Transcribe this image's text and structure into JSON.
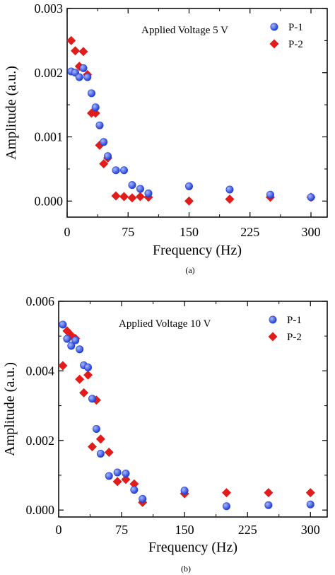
{
  "colors": {
    "p1": "#1f3ed6",
    "p1_highlight": "#a9b8ff",
    "p2": "#e21b1b",
    "axis": "#000000"
  },
  "chart_data": [
    {
      "type": "scatter",
      "caption": "(a)",
      "annotation": "Applied Voltage 5 V",
      "xlabel": "Frequency (Hz)",
      "ylabel": "Amplitude (a.u.)",
      "xlim": [
        0,
        320
      ],
      "ylim": [
        -0.00025,
        0.003
      ],
      "xticks": [
        0,
        75,
        150,
        225,
        300
      ],
      "xtick_labels": [
        "0",
        "75",
        "150",
        "225",
        "300"
      ],
      "yticks": [
        0.0,
        0.001,
        0.002,
        0.003
      ],
      "ytick_labels": [
        "0.000",
        "0.001",
        "0.002",
        "0.003"
      ],
      "legend_position": "top-right",
      "series": [
        {
          "name": "P-1",
          "marker": "circle",
          "x": [
            5,
            10,
            15,
            20,
            25,
            30,
            35,
            40,
            45,
            50,
            60,
            70,
            80,
            90,
            100,
            150,
            200,
            250,
            300
          ],
          "y": [
            0.00202,
            0.002,
            0.00193,
            0.00207,
            0.00193,
            0.00168,
            0.00146,
            0.00118,
            0.00092,
            0.0007,
            0.00048,
            0.00048,
            0.00025,
            0.00019,
            0.00012,
            0.00023,
            0.00018,
            0.0001,
            6e-05
          ]
        },
        {
          "name": "P-2",
          "marker": "diamond",
          "x": [
            5,
            10,
            15,
            20,
            25,
            30,
            35,
            40,
            45,
            50,
            60,
            70,
            80,
            90,
            100,
            150,
            200,
            250,
            300
          ],
          "y": [
            0.0025,
            0.00234,
            0.0021,
            0.00233,
            0.00197,
            0.00137,
            0.00137,
            0.00087,
            0.00058,
            0.00067,
            8e-05,
            7e-05,
            5e-05,
            7e-05,
            6e-05,
            0.0,
            3e-05,
            6e-05,
            6e-05
          ]
        }
      ]
    },
    {
      "type": "scatter",
      "caption": "(b)",
      "annotation": "Applied Voltage 10 V",
      "xlabel": "Frequency (Hz)",
      "ylabel": "Amplitude (a.u.)",
      "xlim": [
        0,
        320
      ],
      "ylim": [
        -0.0002,
        0.006
      ],
      "xticks": [
        0,
        75,
        150,
        225,
        300
      ],
      "xtick_labels": [
        "0",
        "75",
        "150",
        "225",
        "300"
      ],
      "yticks": [
        0.0,
        0.002,
        0.004,
        0.006
      ],
      "ytick_labels": [
        "0.000",
        "0.002",
        "0.004",
        "0.006"
      ],
      "legend_position": "top-right",
      "series": [
        {
          "name": "P-1",
          "marker": "circle",
          "x": [
            5,
            10,
            15,
            20,
            25,
            30,
            35,
            40,
            45,
            50,
            60,
            70,
            80,
            90,
            100,
            150,
            200,
            250,
            300
          ],
          "y": [
            0.00533,
            0.00492,
            0.00472,
            0.00488,
            0.00462,
            0.00416,
            0.0041,
            0.0032,
            0.00233,
            0.00162,
            0.00098,
            0.00108,
            0.00105,
            0.00058,
            0.00032,
            0.00056,
            0.00011,
            0.00014,
            0.00016
          ]
        },
        {
          "name": "P-2",
          "marker": "diamond",
          "x": [
            5,
            10,
            15,
            20,
            25,
            30,
            35,
            40,
            45,
            50,
            60,
            70,
            80,
            90,
            100,
            150,
            200,
            250,
            300
          ],
          "y": [
            0.00415,
            0.00515,
            0.00502,
            0.00493,
            0.00376,
            0.00337,
            0.00388,
            0.00182,
            0.00316,
            0.00204,
            0.00166,
            0.00082,
            0.00088,
            0.00075,
            0.00022,
            0.00047,
            0.0005,
            0.0005,
            0.0005
          ]
        }
      ]
    }
  ]
}
